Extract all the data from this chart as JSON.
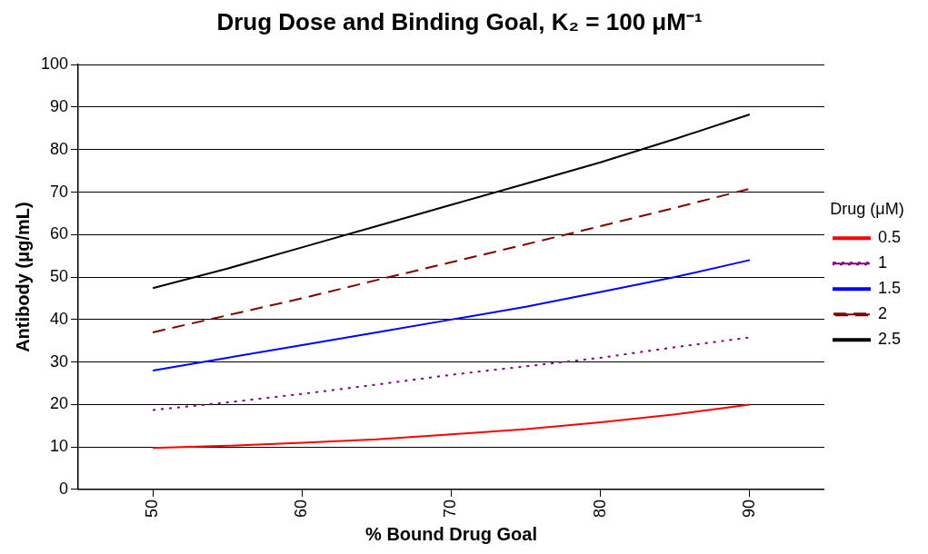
{
  "chart_data": {
    "type": "line",
    "title": "Drug Dose and Binding Goal, K₂ = 100 μM⁻¹",
    "xlabel": "% Bound Drug Goal",
    "ylabel": "Antibody (μg/mL)",
    "legend_title": "Drug (μM)",
    "legend": "right",
    "grid": "y",
    "marker": "none",
    "x": [
      50,
      55,
      60,
      65,
      70,
      75,
      80,
      85,
      90
    ],
    "xlim": [
      45,
      95
    ],
    "xticks": [
      50,
      60,
      70,
      80,
      90
    ],
    "ylim": [
      0,
      100
    ],
    "yticks": [
      0,
      10,
      20,
      30,
      40,
      50,
      60,
      70,
      80,
      90,
      100
    ],
    "series": [
      {
        "name": "0.5",
        "color": "#ff0000",
        "line_style": "solid",
        "values": [
          9.8,
          10.3,
          11,
          11.8,
          13,
          14.2,
          15.8,
          17.7,
          20
        ]
      },
      {
        "name": "1",
        "color": "#800080",
        "line_style": "dotted",
        "values": [
          18.7,
          20.5,
          22.5,
          24.7,
          27,
          29,
          31,
          33.5,
          35.8
        ]
      },
      {
        "name": "1.5",
        "color": "#0000ff",
        "line_style": "solid",
        "values": [
          28,
          31,
          34,
          37,
          40,
          43,
          46.5,
          50,
          54
        ]
      },
      {
        "name": "2",
        "color": "#800000",
        "line_style": "dashed",
        "values": [
          37,
          41,
          45,
          49.3,
          53.5,
          57.7,
          62,
          66.3,
          70.8
        ]
      },
      {
        "name": "2.5",
        "color": "#000000",
        "line_style": "solid",
        "values": [
          47.4,
          52,
          57,
          62,
          67,
          72,
          77,
          82.5,
          88.3
        ]
      }
    ]
  }
}
